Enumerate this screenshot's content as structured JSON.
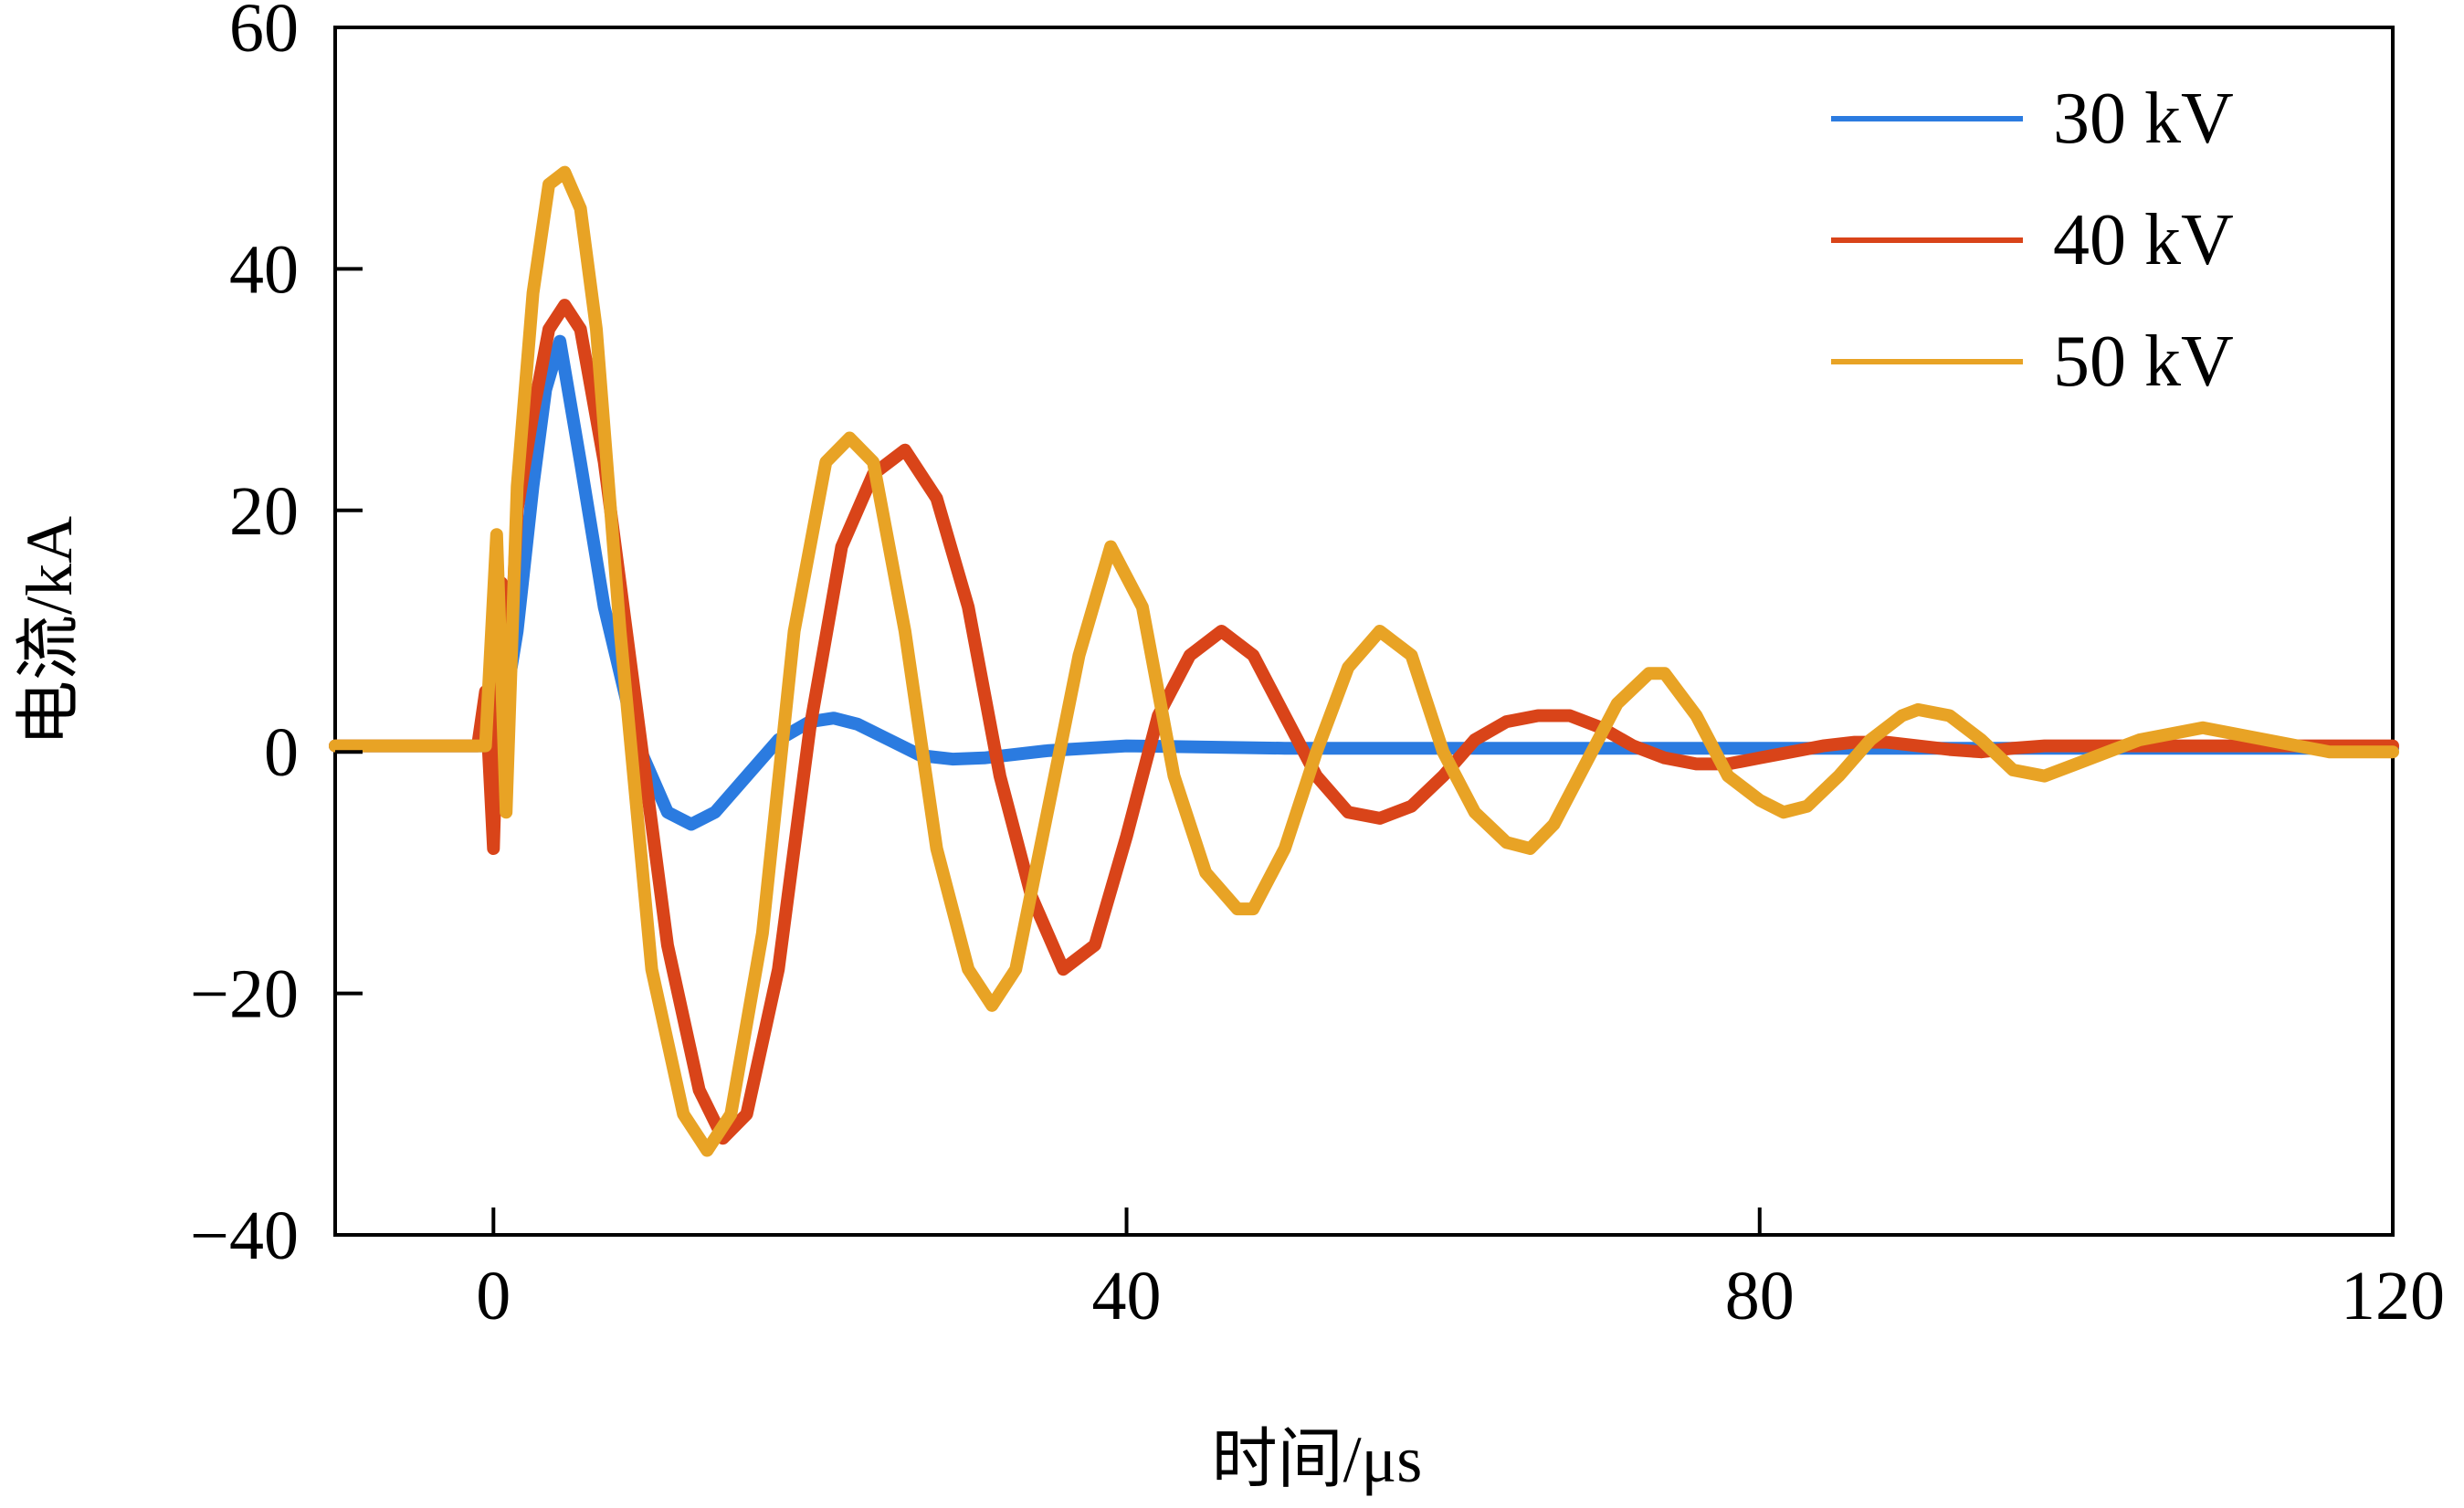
{
  "chart_data": {
    "type": "line",
    "title": "",
    "xlabel": "时间/μs",
    "ylabel": "电流/kA",
    "xlim": [
      -10,
      120
    ],
    "ylim": [
      -40,
      60
    ],
    "xticks": [
      0,
      40,
      80,
      120
    ],
    "yticks": [
      60,
      40,
      20,
      0,
      -20,
      -40
    ],
    "xtick_labels": [
      "0",
      "40",
      "80",
      "120"
    ],
    "ytick_labels": [
      "60",
      "40",
      "20",
      "0",
      "−20",
      "−40"
    ],
    "grid": false,
    "legend_position": "top-right",
    "series": [
      {
        "name": "30 kV",
        "color": "#2b7be0",
        "x": [
          -10,
          -0.5,
          0.5,
          1.5,
          2.5,
          3.3,
          4.2,
          5.5,
          7,
          9,
          11,
          12.5,
          14,
          16,
          18,
          20,
          21.5,
          23,
          25,
          27,
          29,
          31,
          35,
          40,
          50,
          60,
          70,
          80,
          90,
          100,
          110,
          120
        ],
        "y": [
          0.5,
          0.5,
          2,
          10,
          22,
          30,
          34,
          24,
          12,
          1,
          -5,
          -6,
          -5,
          -2,
          1,
          2.5,
          2.8,
          2.3,
          1,
          -0.3,
          -0.6,
          -0.5,
          0.1,
          0.5,
          0.3,
          0.3,
          0.3,
          0.3,
          0.3,
          0.3,
          0.3,
          0.3
        ]
      },
      {
        "name": "40 kV",
        "color": "#d94419",
        "x": [
          -10,
          -1,
          -0.5,
          0,
          0.5,
          1,
          1.5,
          2.5,
          3.5,
          4.5,
          5.5,
          7,
          9,
          11,
          13,
          14.5,
          16,
          18,
          20,
          22,
          24,
          26,
          28,
          30,
          32,
          34,
          36,
          38,
          40,
          42,
          44,
          46,
          48,
          50,
          52,
          54,
          56,
          58,
          60,
          62,
          64,
          66,
          68,
          70,
          72,
          74,
          76,
          78,
          80,
          82,
          84,
          86,
          88,
          90,
          92,
          94,
          96,
          98,
          100,
          102,
          104,
          106,
          108,
          110,
          112,
          114,
          116,
          118,
          120
        ],
        "y": [
          0.5,
          0.5,
          5,
          -8,
          14,
          6,
          20,
          28,
          35,
          37,
          35,
          24,
          4,
          -16,
          -28,
          -32,
          -30,
          -18,
          2,
          17,
          23,
          25,
          21,
          12,
          -2,
          -12,
          -18,
          -16,
          -7,
          3,
          8,
          10,
          8,
          3,
          -2,
          -5,
          -5.5,
          -4.5,
          -2,
          1,
          2.5,
          3,
          3,
          2,
          0.5,
          -0.5,
          -1,
          -1,
          -0.5,
          0,
          0.5,
          0.8,
          0.8,
          0.5,
          0.2,
          0,
          0.3,
          0.5,
          0.5,
          0.5,
          0.5,
          0.5,
          0.5,
          0.5,
          0.5,
          0.5,
          0.5,
          0.5,
          0.5
        ]
      },
      {
        "name": "50 kV",
        "color": "#e8a325",
        "x": [
          -10,
          -0.5,
          0.2,
          0.8,
          1.5,
          2.5,
          3.5,
          4.5,
          5.5,
          6.5,
          8,
          10,
          12,
          13.5,
          15,
          17,
          19,
          21,
          22.5,
          24,
          26,
          28,
          30,
          31.5,
          33,
          35,
          37,
          39,
          41,
          43,
          45,
          47,
          48,
          50,
          52,
          54,
          56,
          58,
          60,
          62,
          64,
          65.5,
          67,
          69,
          71,
          73,
          74,
          76,
          78,
          80,
          81.5,
          83,
          85,
          87,
          89,
          90,
          92,
          94,
          96,
          98,
          100,
          102,
          104,
          106,
          108,
          110,
          112,
          114,
          116,
          118,
          120
        ],
        "y": [
          0.5,
          0.5,
          18,
          -5,
          22,
          38,
          47,
          48,
          45,
          35,
          10,
          -18,
          -30,
          -33,
          -30,
          -15,
          10,
          24,
          26,
          24,
          10,
          -8,
          -18,
          -21,
          -18,
          -5,
          8,
          17,
          12,
          -2,
          -10,
          -13,
          -13,
          -8,
          0,
          7,
          10,
          8,
          0,
          -5,
          -7.5,
          -8,
          -6,
          -1,
          4,
          6.5,
          6.5,
          3,
          -2,
          -4,
          -5,
          -4.5,
          -2,
          1,
          3,
          3.5,
          3,
          1,
          -1.5,
          -2,
          -1,
          0,
          1,
          1.5,
          2,
          1.5,
          1,
          0.5,
          0,
          0,
          0
        ]
      }
    ]
  }
}
